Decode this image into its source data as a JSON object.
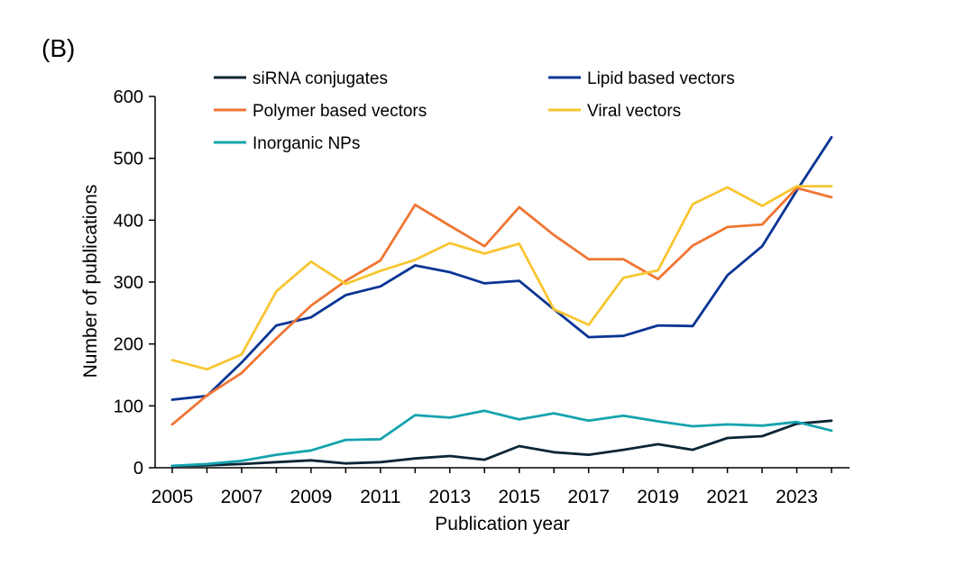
{
  "panel_label": "(B)",
  "chart_data": {
    "type": "line",
    "title": "",
    "xlabel": "Publication year",
    "ylabel": "Number of publications",
    "x": [
      2005,
      2006,
      2007,
      2008,
      2009,
      2010,
      2011,
      2012,
      2013,
      2014,
      2015,
      2016,
      2017,
      2018,
      2019,
      2020,
      2021,
      2022,
      2023,
      2024
    ],
    "xticks": [
      "2005",
      "2007",
      "2009",
      "2011",
      "2013",
      "2015",
      "2017",
      "2019",
      "2021",
      "2023"
    ],
    "xlim": [
      2005,
      2024
    ],
    "ylim": [
      0,
      600
    ],
    "yticks": [
      0,
      100,
      200,
      300,
      400,
      500,
      600
    ],
    "grid": false,
    "legend_position": "top",
    "series": [
      {
        "name": "siRNA conjugates",
        "color": "#0d2535",
        "values": [
          3,
          4,
          6,
          9,
          12,
          7,
          9,
          15,
          19,
          13,
          35,
          25,
          21,
          29,
          38,
          29,
          48,
          51,
          71,
          76
        ]
      },
      {
        "name": "Lipid based vectors",
        "color": "#0a3595",
        "values": [
          110,
          116,
          170,
          230,
          243,
          279,
          293,
          327,
          316,
          298,
          302,
          256,
          211,
          213,
          230,
          229,
          311,
          358,
          448,
          534
        ]
      },
      {
        "name": "Polymer based vectors",
        "color": "#ef7634",
        "values": [
          70,
          117,
          153,
          209,
          262,
          302,
          335,
          425,
          391,
          358,
          421,
          376,
          337,
          337,
          305,
          359,
          389,
          393,
          452,
          437
        ]
      },
      {
        "name": "Viral vectors",
        "color": "#f8c633",
        "values": [
          174,
          159,
          183,
          285,
          333,
          297,
          318,
          336,
          363,
          346,
          362,
          256,
          231,
          307,
          319,
          426,
          453,
          423,
          455,
          455
        ]
      },
      {
        "name": "Inorganic NPs",
        "color": "#14a3ae",
        "values": [
          3,
          6,
          11,
          21,
          28,
          45,
          46,
          85,
          81,
          92,
          78,
          88,
          76,
          84,
          75,
          67,
          70,
          68,
          74,
          60
        ]
      }
    ]
  }
}
